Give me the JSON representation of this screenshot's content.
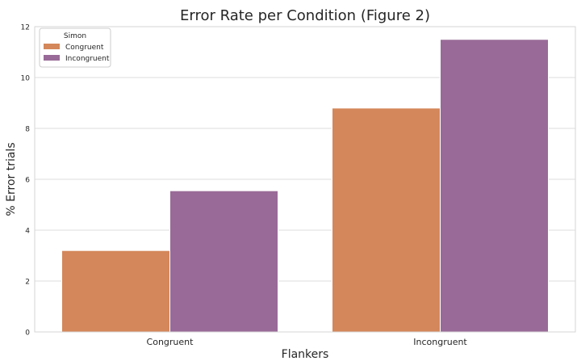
{
  "chart_data": {
    "type": "bar",
    "title": "Error Rate per Condition (Figure 2)",
    "xlabel": "Flankers",
    "ylabel": "% Error trials",
    "categories": [
      "Congruent",
      "Incongruent"
    ],
    "series": [
      {
        "name": "Congruent",
        "values": [
          3.2,
          8.8
        ],
        "color": "#D4875A"
      },
      {
        "name": "Incongruent",
        "values": [
          5.55,
          11.5
        ],
        "color": "#996A98"
      }
    ],
    "ylim": [
      0,
      12
    ],
    "yticks": [
      "0",
      "2",
      "4",
      "6",
      "8",
      "10",
      "12"
    ],
    "grid": true,
    "legend": {
      "title": "Simon",
      "placement": "top-left"
    }
  }
}
